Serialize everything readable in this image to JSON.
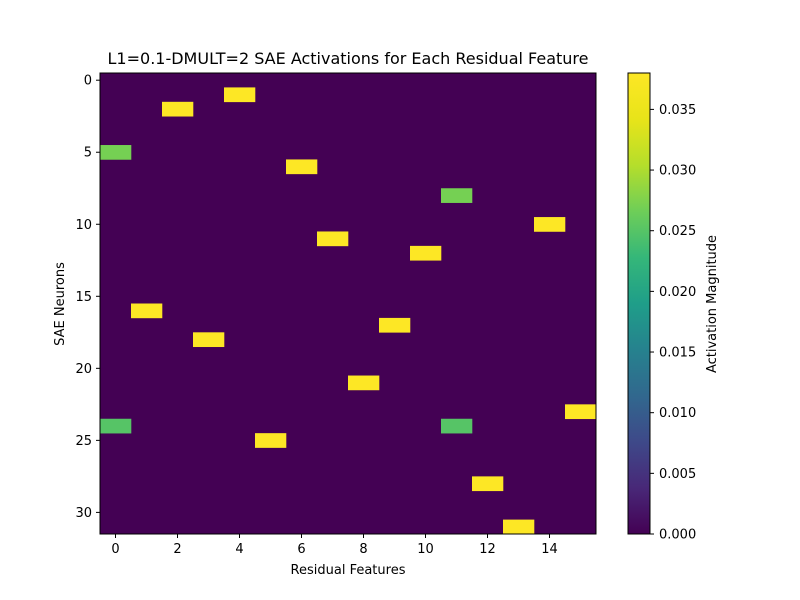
{
  "chart_data": {
    "type": "heatmap",
    "title": "L1=0.1-DMULT=2 SAE Activations for Each Residual Feature",
    "xlabel": "Residual Features",
    "ylabel": "SAE Neurons",
    "n_cols": 16,
    "n_rows": 32,
    "x_ticks": [
      0,
      2,
      4,
      6,
      8,
      10,
      12,
      14
    ],
    "y_ticks": [
      0,
      5,
      10,
      15,
      20,
      25,
      30
    ],
    "background_value": 0.0,
    "cells": [
      {
        "x": 4,
        "y": 1,
        "value": 0.038
      },
      {
        "x": 2,
        "y": 2,
        "value": 0.038
      },
      {
        "x": 0,
        "y": 5,
        "value": 0.027
      },
      {
        "x": 6,
        "y": 6,
        "value": 0.038
      },
      {
        "x": 11,
        "y": 8,
        "value": 0.027
      },
      {
        "x": 14,
        "y": 10,
        "value": 0.038
      },
      {
        "x": 7,
        "y": 11,
        "value": 0.038
      },
      {
        "x": 10,
        "y": 12,
        "value": 0.038
      },
      {
        "x": 1,
        "y": 16,
        "value": 0.038
      },
      {
        "x": 9,
        "y": 17,
        "value": 0.038
      },
      {
        "x": 3,
        "y": 18,
        "value": 0.038
      },
      {
        "x": 8,
        "y": 21,
        "value": 0.038
      },
      {
        "x": 15,
        "y": 23,
        "value": 0.038
      },
      {
        "x": 0,
        "y": 24,
        "value": 0.025
      },
      {
        "x": 11,
        "y": 24,
        "value": 0.025
      },
      {
        "x": 5,
        "y": 25,
        "value": 0.038
      },
      {
        "x": 12,
        "y": 28,
        "value": 0.038
      },
      {
        "x": 13,
        "y": 31,
        "value": 0.038
      }
    ],
    "colorbar": {
      "label": "Activation Magnitude",
      "min": 0.0,
      "max": 0.038,
      "ticks": [
        "0.000",
        "0.005",
        "0.010",
        "0.015",
        "0.020",
        "0.025",
        "0.030",
        "0.035"
      ],
      "colormap": "viridis"
    },
    "grid": false
  },
  "colors": {
    "background_cell": "#440154",
    "high": "#fde725",
    "mid": "#35b779"
  }
}
